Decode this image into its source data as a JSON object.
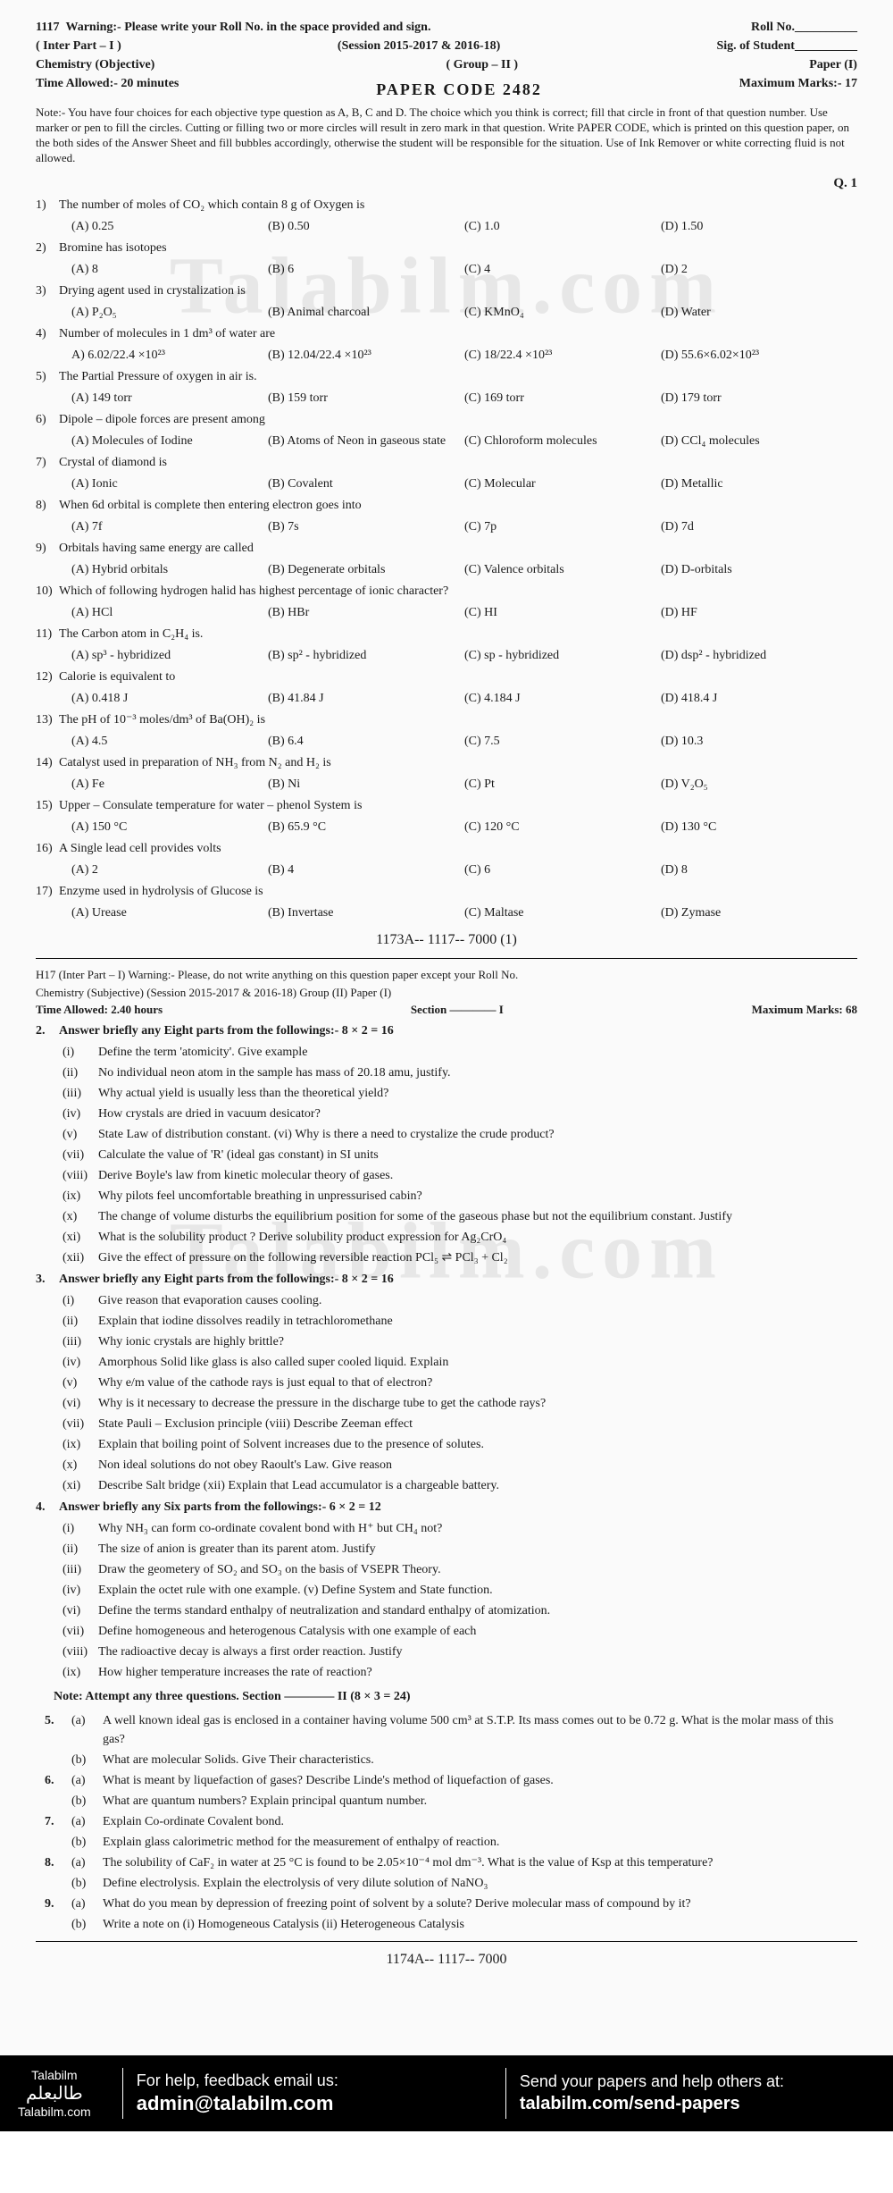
{
  "header": {
    "code": "1117",
    "warning": "Warning:- Please write your Roll No. in the space provided and sign.",
    "rollno": "Roll No.__________",
    "part": "( Inter Part – I )",
    "session": "(Session  2015-2017 & 2016-18)",
    "sig": "Sig. of Student__________",
    "subject": "Chemistry   (Objective)",
    "group": "( Group – II )",
    "paper": "Paper (I)",
    "time": "Time Allowed:- 20 minutes",
    "papercode": "PAPER CODE 2482",
    "marks": "Maximum Marks:- 17",
    "note": "Note:- You have four choices for each objective type question as A, B, C and D. The choice which you think is correct; fill that circle in front of that question number. Use marker or pen to fill the circles. Cutting or filling two or more circles will result in zero mark in that question. Write PAPER CODE, which is printed on this question paper, on the both sides of the Answer Sheet and fill bubbles accordingly, otherwise the student will be responsible for the situation. Use of Ink Remover or white correcting fluid is not allowed.",
    "q1": "Q. 1"
  },
  "mcq": [
    {
      "n": "1)",
      "t": "The number of moles of CO₂ which contain 8 g of Oxygen is",
      "o": [
        "(A) 0.25",
        "(B) 0.50",
        "(C) 1.0",
        "(D) 1.50"
      ]
    },
    {
      "n": "2)",
      "t": "Bromine has isotopes",
      "o": [
        "(A) 8",
        "(B) 6",
        "(C) 4",
        "(D) 2"
      ]
    },
    {
      "n": "3)",
      "t": "Drying agent used in crystalization is",
      "o": [
        "(A) P₂O₅",
        "(B) Animal charcoal",
        "(C) KMnO₄",
        "(D) Water"
      ]
    },
    {
      "n": "4)",
      "t": "Number of molecules in 1 dm³ of water are",
      "o": [
        "A) 6.02/22.4 ×10²³",
        "(B) 12.04/22.4 ×10²³",
        "(C) 18/22.4 ×10²³",
        "(D) 55.6×6.02×10²³"
      ]
    },
    {
      "n": "5)",
      "t": "The Partial Pressure of oxygen in air is.",
      "o": [
        "(A) 149 torr",
        "(B) 159 torr",
        "(C) 169 torr",
        "(D) 179 torr"
      ]
    },
    {
      "n": "6)",
      "t": "Dipole – dipole forces are present among",
      "o": [
        "(A) Molecules of Iodine",
        "(B) Atoms of Neon in gaseous state",
        "(C) Chloroform molecules",
        "(D) CCl₄ molecules"
      ]
    },
    {
      "n": "7)",
      "t": "Crystal of diamond is",
      "o": [
        "(A) Ionic",
        "(B) Covalent",
        "(C) Molecular",
        "(D) Metallic"
      ]
    },
    {
      "n": "8)",
      "t": "When 6d orbital is complete then entering electron goes into",
      "o": [
        "(A) 7f",
        "(B) 7s",
        "(C) 7p",
        "(D) 7d"
      ]
    },
    {
      "n": "9)",
      "t": "Orbitals having same energy are called",
      "o": [
        "(A) Hybrid orbitals",
        "(B) Degenerate orbitals",
        "(C) Valence orbitals",
        "(D) D-orbitals"
      ]
    },
    {
      "n": "10)",
      "t": "Which of following hydrogen halid has highest percentage of ionic character?",
      "o": [
        "(A) HCl",
        "(B) HBr",
        "(C) HI",
        "(D) HF"
      ]
    },
    {
      "n": "11)",
      "t": "The Carbon atom in C₂H₄ is.",
      "o": [
        "(A) sp³ - hybridized",
        "(B) sp² - hybridized",
        "(C) sp - hybridized",
        "(D) dsp² - hybridized"
      ]
    },
    {
      "n": "12)",
      "t": "Calorie is equivalent to",
      "o": [
        "(A) 0.418 J",
        "(B) 41.84 J",
        "(C) 4.184 J",
        "(D) 418.4 J"
      ]
    },
    {
      "n": "13)",
      "t": "The pH of 10⁻³ moles/dm³ of Ba(OH)₂ is",
      "o": [
        "(A) 4.5",
        "(B) 6.4",
        "(C) 7.5",
        "(D) 10.3"
      ]
    },
    {
      "n": "14)",
      "t": "Catalyst used in preparation of NH₃ from N₂ and H₂ is",
      "o": [
        "(A) Fe",
        "(B) Ni",
        "(C) Pt",
        "(D) V₂O₅"
      ]
    },
    {
      "n": "15)",
      "t": "Upper – Consulate temperature for water – phenol System is",
      "o": [
        "(A) 150 °C",
        "(B) 65.9 °C",
        "(C) 120 °C",
        "(D) 130 °C"
      ]
    },
    {
      "n": "16)",
      "t": "A Single lead cell provides volts",
      "o": [
        "(A) 2",
        "(B) 4",
        "(C) 6",
        "(D) 8"
      ]
    },
    {
      "n": "17)",
      "t": "Enzyme used in hydrolysis of Glucose is",
      "o": [
        "(A) Urease",
        "(B) Invertase",
        "(C) Maltase",
        "(D) Zymase"
      ]
    }
  ],
  "mid1": "1173A-- 1117-- 7000   (1)",
  "header2": {
    "line1": "H17 (Inter Part – I)   Warning:-  Please, do not write anything on this question paper except your Roll No.",
    "line2": "Chemistry   (Subjective)     (Session  2015-2017 & 2016-18)   Group (II)     Paper (I)",
    "time": "Time Allowed:  2.40 hours",
    "section": "Section ———— I",
    "marks": "Maximum Marks:  68"
  },
  "q2": {
    "head": "2.",
    "t": "Answer briefly any Eight parts from the followings:-   8 × 2 = 16",
    "items": [
      [
        "(i)",
        "Define the term 'atomicity'. Give example"
      ],
      [
        "(ii)",
        "No individual neon atom in the sample has mass of 20.18 amu, justify."
      ],
      [
        "(iii)",
        "Why actual yield is usually less than the theoretical yield?"
      ],
      [
        "(iv)",
        "How crystals are dried in vacuum desicator?"
      ],
      [
        "(v)",
        "State Law of distribution constant.   (vi)  Why is there a need to crystalize the crude product?"
      ],
      [
        "(vii)",
        "Calculate the value of 'R' (ideal gas constant) in SI units"
      ],
      [
        "(viii)",
        "Derive Boyle's law from kinetic molecular theory of gases."
      ],
      [
        "(ix)",
        "Why pilots feel uncomfortable breathing in unpressurised cabin?"
      ],
      [
        "(x)",
        "The change of volume disturbs the equilibrium position for some of the gaseous phase but not the equilibrium constant. Justify"
      ],
      [
        "(xi)",
        "What is the solubility product ? Derive solubility product expression for Ag₂CrO₄"
      ],
      [
        "(xii)",
        "Give the effect of pressure on the following reversible reaction   PCl₅ ⇌ PCl₃ + Cl₂"
      ]
    ]
  },
  "q3": {
    "head": "3.",
    "t": "Answer briefly any Eight parts from the followings:-              8 × 2 = 16",
    "items": [
      [
        "(i)",
        "Give reason that evaporation causes cooling."
      ],
      [
        "(ii)",
        "Explain that iodine dissolves readily in tetrachloromethane"
      ],
      [
        "(iii)",
        "Why ionic crystals are highly brittle?"
      ],
      [
        "(iv)",
        "Amorphous Solid like glass is also called super cooled liquid. Explain"
      ],
      [
        "(v)",
        "Why e/m value of the cathode rays is just equal to that of electron?"
      ],
      [
        "(vi)",
        "Why is it necessary to decrease the pressure in the discharge tube to get the cathode rays?"
      ],
      [
        "(vii)",
        "State Pauli – Exclusion principle   (viii) Describe Zeeman effect"
      ],
      [
        "(ix)",
        "Explain that boiling point of Solvent increases due to the presence of solutes."
      ],
      [
        "(x)",
        "Non ideal solutions do not obey Raoult's Law. Give reason"
      ],
      [
        "(xi)",
        "Describe Salt bridge   (xii) Explain that Lead accumulator is a chargeable battery."
      ]
    ]
  },
  "q4": {
    "head": "4.",
    "t": "Answer briefly any Six parts from the followings:-               6 × 2 = 12",
    "items": [
      [
        "(i)",
        "Why NH₃ can form co-ordinate covalent bond with H⁺ but CH₄ not?"
      ],
      [
        "(ii)",
        "The size of anion is greater than its parent atom. Justify"
      ],
      [
        "(iii)",
        "Draw the geometery of SO₂ and SO₃ on the basis of VSEPR Theory."
      ],
      [
        "(iv)",
        "Explain the octet rule with one example.   (v) Define System and State function."
      ],
      [
        "(vi)",
        "Define the terms standard enthalpy of neutralization and standard enthalpy of atomization."
      ],
      [
        "(vii)",
        "Define homogeneous and heterogenous Catalysis with one example of each"
      ],
      [
        "(viii)",
        "The radioactive decay is always a first order reaction. Justify"
      ],
      [
        "(ix)",
        "How higher temperature increases the rate of reaction?"
      ]
    ]
  },
  "note2": "Note:  Attempt any three questions.         Section ———— II                    (8 × 3 = 24)",
  "longq": [
    [
      "5.",
      "(a)",
      "A well known ideal gas is enclosed in a container having volume 500 cm³ at S.T.P. Its mass comes out to be 0.72 g. What is the molar mass of this gas?"
    ],
    [
      "",
      "(b)",
      "What are molecular Solids. Give Their characteristics."
    ],
    [
      "6.",
      "(a)",
      "What is meant by liquefaction of gases? Describe Linde's method of liquefaction of gases."
    ],
    [
      "",
      "(b)",
      "What are quantum numbers? Explain principal quantum number."
    ],
    [
      "7.",
      "(a)",
      "Explain Co-ordinate Covalent bond."
    ],
    [
      "",
      "(b)",
      "Explain glass calorimetric method for the measurement of enthalpy of reaction."
    ],
    [
      "8.",
      "(a)",
      "The solubility of CaF₂ in water at 25 °C is found to be 2.05×10⁻⁴ mol dm⁻³. What is the value of Ksp at this temperature?"
    ],
    [
      "",
      "(b)",
      "Define electrolysis. Explain the electrolysis of very dilute solution of NaNO₃"
    ],
    [
      "9.",
      "(a)",
      "What do you mean by depression of freezing point of solvent by a solute? Derive molecular mass of compound by it?"
    ],
    [
      "",
      "(b)",
      "Write a note on  (i) Homogeneous Catalysis     (ii) Heterogeneous Catalysis"
    ]
  ],
  "mid2": "1174A-- 1117-- 7000",
  "footer": {
    "brand": "Talabilm",
    "url": "Talabilm.com",
    "help": "For help, feedback email us:",
    "email": "admin@talabilm.com",
    "send": "Send your papers and help others at:",
    "sendurl": "talabilm.com/send-papers"
  },
  "watermark": "Talabilm.com"
}
